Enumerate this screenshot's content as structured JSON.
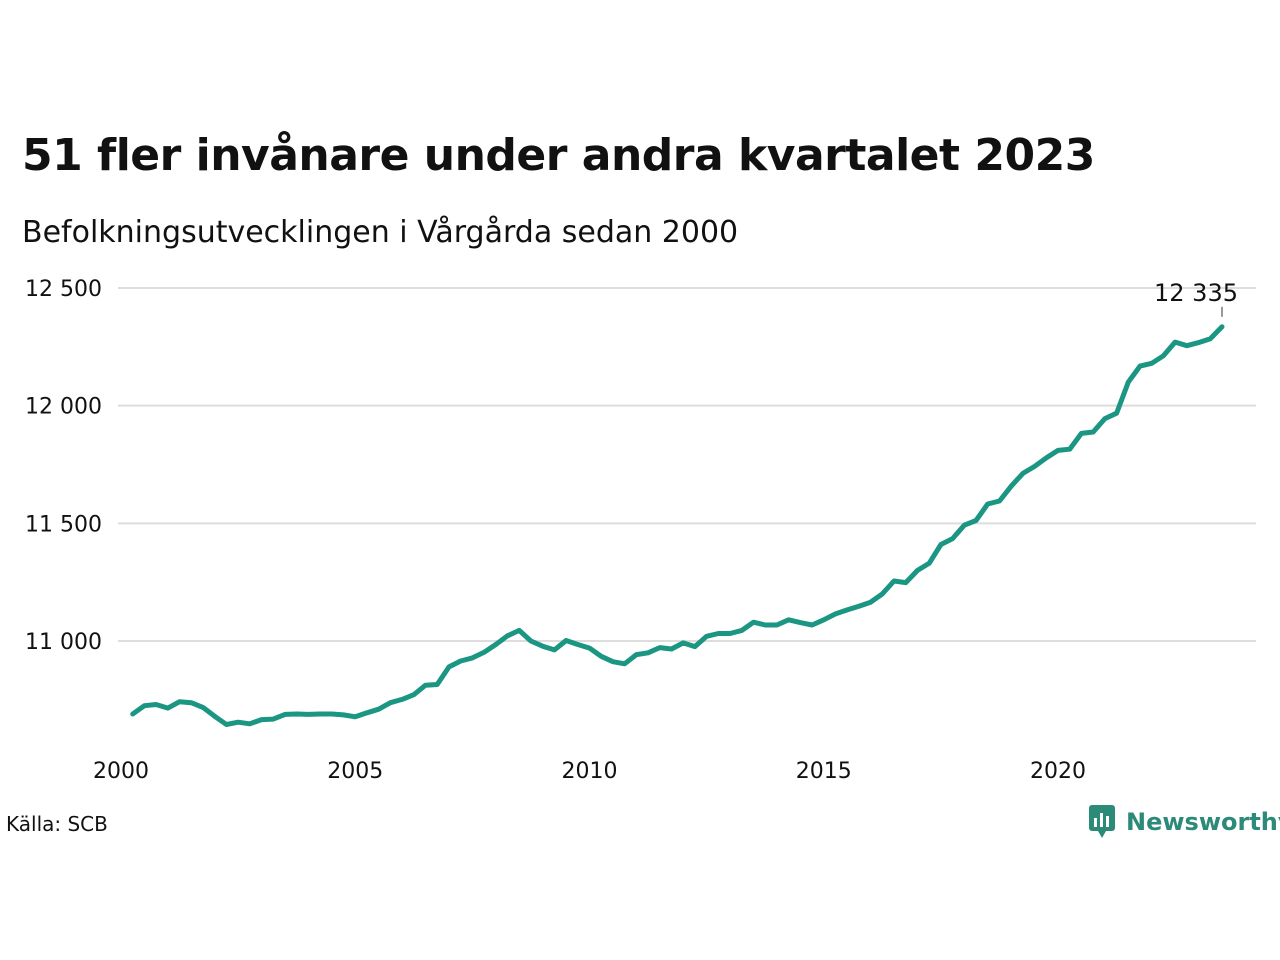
{
  "header": {
    "title": "51 fler invånare under andra kvartalet 2023",
    "subtitle": "Befolkningsutvecklingen i Vårgårda sedan 2000"
  },
  "footer": {
    "source": "Källa: SCB",
    "brand": "Newsworthy"
  },
  "colors": {
    "line": "#1b9683",
    "grid": "#dddddd",
    "brand": "#2c8a78"
  },
  "chart_data": {
    "type": "line",
    "title": "51 fler invånare under andra kvartalet 2023",
    "subtitle": "Befolkningsutvecklingen i Vårgårda sedan 2000",
    "x_ticks": [
      2000,
      2005,
      2010,
      2015,
      2020
    ],
    "y_ticks": [
      11000,
      11500,
      12000,
      12500
    ],
    "y_tick_labels": [
      "11 000",
      "11 500",
      "12 000",
      "12 500"
    ],
    "x_tick_labels": [
      "2000",
      "2005",
      "2010",
      "2015",
      "2020"
    ],
    "xlim": [
      2000,
      2024.2
    ],
    "ylim": [
      10580,
      12600
    ],
    "grid": true,
    "last_value_label": "12 335",
    "series": [
      {
        "values": [
          [
            2000.25,
            10690
          ],
          [
            2000.5,
            10725
          ],
          [
            2000.75,
            10730
          ],
          [
            2001.0,
            10715
          ],
          [
            2001.25,
            10742
          ],
          [
            2001.5,
            10738
          ],
          [
            2001.75,
            10718
          ],
          [
            2002.0,
            10680
          ],
          [
            2002.25,
            10645
          ],
          [
            2002.5,
            10655
          ],
          [
            2002.75,
            10648
          ],
          [
            2003.0,
            10666
          ],
          [
            2003.25,
            10668
          ],
          [
            2003.5,
            10688
          ],
          [
            2003.75,
            10690
          ],
          [
            2004.0,
            10688
          ],
          [
            2004.25,
            10690
          ],
          [
            2004.5,
            10690
          ],
          [
            2004.75,
            10686
          ],
          [
            2005.0,
            10678
          ],
          [
            2005.25,
            10695
          ],
          [
            2005.5,
            10710
          ],
          [
            2005.75,
            10738
          ],
          [
            2006.0,
            10752
          ],
          [
            2006.25,
            10772
          ],
          [
            2006.5,
            10812
          ],
          [
            2006.75,
            10815
          ],
          [
            2007.0,
            10890
          ],
          [
            2007.25,
            10915
          ],
          [
            2007.5,
            10928
          ],
          [
            2007.75,
            10952
          ],
          [
            2008.0,
            10985
          ],
          [
            2008.25,
            11022
          ],
          [
            2008.5,
            11045
          ],
          [
            2008.75,
            11000
          ],
          [
            2009.0,
            10978
          ],
          [
            2009.25,
            10962
          ],
          [
            2009.5,
            11002
          ],
          [
            2009.75,
            10985
          ],
          [
            2010.0,
            10970
          ],
          [
            2010.25,
            10935
          ],
          [
            2010.5,
            10912
          ],
          [
            2010.75,
            10903
          ],
          [
            2011.0,
            10942
          ],
          [
            2011.25,
            10950
          ],
          [
            2011.5,
            10972
          ],
          [
            2011.75,
            10966
          ],
          [
            2012.0,
            10992
          ],
          [
            2012.25,
            10976
          ],
          [
            2012.5,
            11020
          ],
          [
            2012.75,
            11032
          ],
          [
            2013.0,
            11032
          ],
          [
            2013.25,
            11045
          ],
          [
            2013.5,
            11080
          ],
          [
            2013.75,
            11068
          ],
          [
            2014.0,
            11068
          ],
          [
            2014.25,
            11090
          ],
          [
            2014.5,
            11078
          ],
          [
            2014.75,
            11068
          ],
          [
            2015.0,
            11090
          ],
          [
            2015.25,
            11115
          ],
          [
            2015.5,
            11132
          ],
          [
            2015.75,
            11148
          ],
          [
            2016.0,
            11165
          ],
          [
            2016.25,
            11200
          ],
          [
            2016.5,
            11255
          ],
          [
            2016.75,
            11248
          ],
          [
            2017.0,
            11300
          ],
          [
            2017.25,
            11330
          ],
          [
            2017.5,
            11410
          ],
          [
            2017.75,
            11435
          ],
          [
            2018.0,
            11492
          ],
          [
            2018.25,
            11512
          ],
          [
            2018.5,
            11582
          ],
          [
            2018.75,
            11595
          ],
          [
            2019.0,
            11658
          ],
          [
            2019.25,
            11712
          ],
          [
            2019.5,
            11742
          ],
          [
            2019.75,
            11778
          ],
          [
            2020.0,
            11810
          ],
          [
            2020.25,
            11815
          ],
          [
            2020.5,
            11882
          ],
          [
            2020.75,
            11888
          ],
          [
            2021.0,
            11945
          ],
          [
            2021.25,
            11968
          ],
          [
            2021.5,
            12100
          ],
          [
            2021.75,
            12168
          ],
          [
            2022.0,
            12180
          ],
          [
            2022.25,
            12212
          ],
          [
            2022.5,
            12270
          ],
          [
            2022.75,
            12255
          ],
          [
            2023.0,
            12268
          ],
          [
            2023.25,
            12284
          ],
          [
            2023.5,
            12335
          ]
        ]
      }
    ]
  }
}
